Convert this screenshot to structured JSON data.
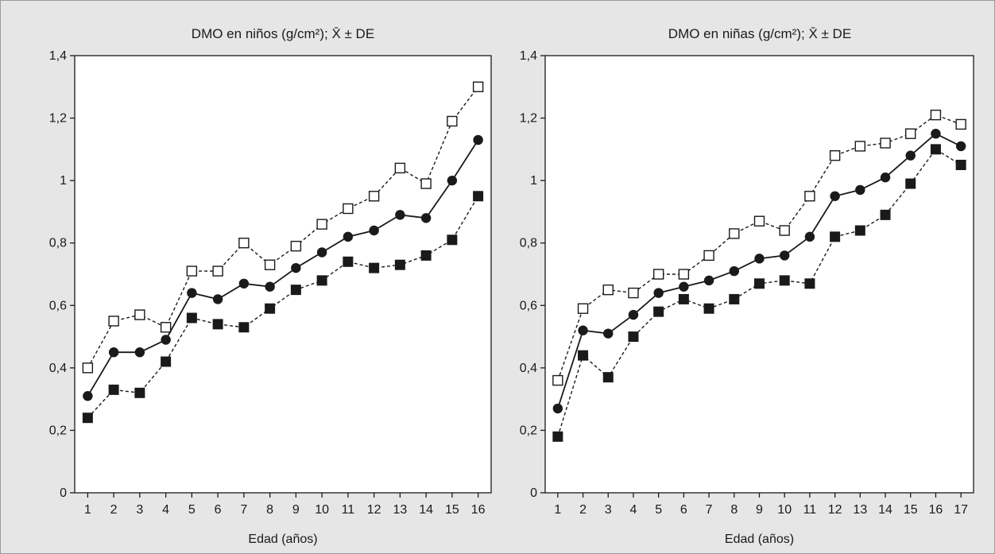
{
  "chart_data": [
    {
      "type": "line",
      "title": "DMO en niños (g/cm²); X̄ ± DE",
      "xlabel": "Edad (años)",
      "ylabel": "",
      "x": [
        1,
        2,
        3,
        4,
        5,
        6,
        7,
        8,
        9,
        10,
        11,
        12,
        13,
        14,
        15,
        16
      ],
      "xlim": [
        0.5,
        16.5
      ],
      "ylim": [
        0,
        1.4
      ],
      "yticks": [
        "0",
        "0,2",
        "0,4",
        "0,6",
        "0,8",
        "1",
        "1,2",
        "1,4"
      ],
      "grid": false,
      "series": [
        {
          "role": "mean_plus_sd",
          "marker": "open-square",
          "line": "dashed",
          "values": [
            0.4,
            0.55,
            0.57,
            0.53,
            0.71,
            0.71,
            0.8,
            0.73,
            0.79,
            0.86,
            0.91,
            0.95,
            1.04,
            0.99,
            1.19,
            1.3
          ]
        },
        {
          "role": "mean",
          "marker": "filled-circle",
          "line": "solid",
          "values": [
            0.31,
            0.45,
            0.45,
            0.49,
            0.64,
            0.62,
            0.67,
            0.66,
            0.72,
            0.77,
            0.82,
            0.84,
            0.89,
            0.88,
            1.0,
            1.13
          ]
        },
        {
          "role": "mean_minus_sd",
          "marker": "filled-square",
          "line": "dashed",
          "values": [
            0.24,
            0.33,
            0.32,
            0.42,
            0.56,
            0.54,
            0.53,
            0.59,
            0.65,
            0.68,
            0.74,
            0.72,
            0.73,
            0.76,
            0.81,
            0.95
          ]
        }
      ]
    },
    {
      "type": "line",
      "title": "DMO en niñas (g/cm²); X̄ ± DE",
      "xlabel": "Edad (años)",
      "ylabel": "",
      "x": [
        1,
        2,
        3,
        4,
        5,
        6,
        7,
        8,
        9,
        10,
        11,
        12,
        13,
        14,
        15,
        16,
        17
      ],
      "xlim": [
        0.5,
        17.5
      ],
      "ylim": [
        0,
        1.4
      ],
      "yticks": [
        "0",
        "0,2",
        "0,4",
        "0,6",
        "0,8",
        "1",
        "1,2",
        "1,4"
      ],
      "grid": false,
      "series": [
        {
          "role": "mean_plus_sd",
          "marker": "open-square",
          "line": "dashed",
          "values": [
            0.36,
            0.59,
            0.65,
            0.64,
            0.7,
            0.7,
            0.76,
            0.83,
            0.87,
            0.84,
            0.95,
            1.08,
            1.11,
            1.12,
            1.15,
            1.21,
            1.18
          ]
        },
        {
          "role": "mean",
          "marker": "filled-circle",
          "line": "solid",
          "values": [
            0.27,
            0.52,
            0.51,
            0.57,
            0.64,
            0.66,
            0.68,
            0.71,
            0.75,
            0.76,
            0.82,
            0.95,
            0.97,
            1.01,
            1.08,
            1.15,
            1.11
          ]
        },
        {
          "role": "mean_minus_sd",
          "marker": "filled-square",
          "line": "dashed",
          "values": [
            0.18,
            0.44,
            0.37,
            0.5,
            0.58,
            0.62,
            0.59,
            0.62,
            0.67,
            0.68,
            0.67,
            0.82,
            0.84,
            0.89,
            0.99,
            1.1,
            1.05
          ]
        }
      ]
    }
  ]
}
